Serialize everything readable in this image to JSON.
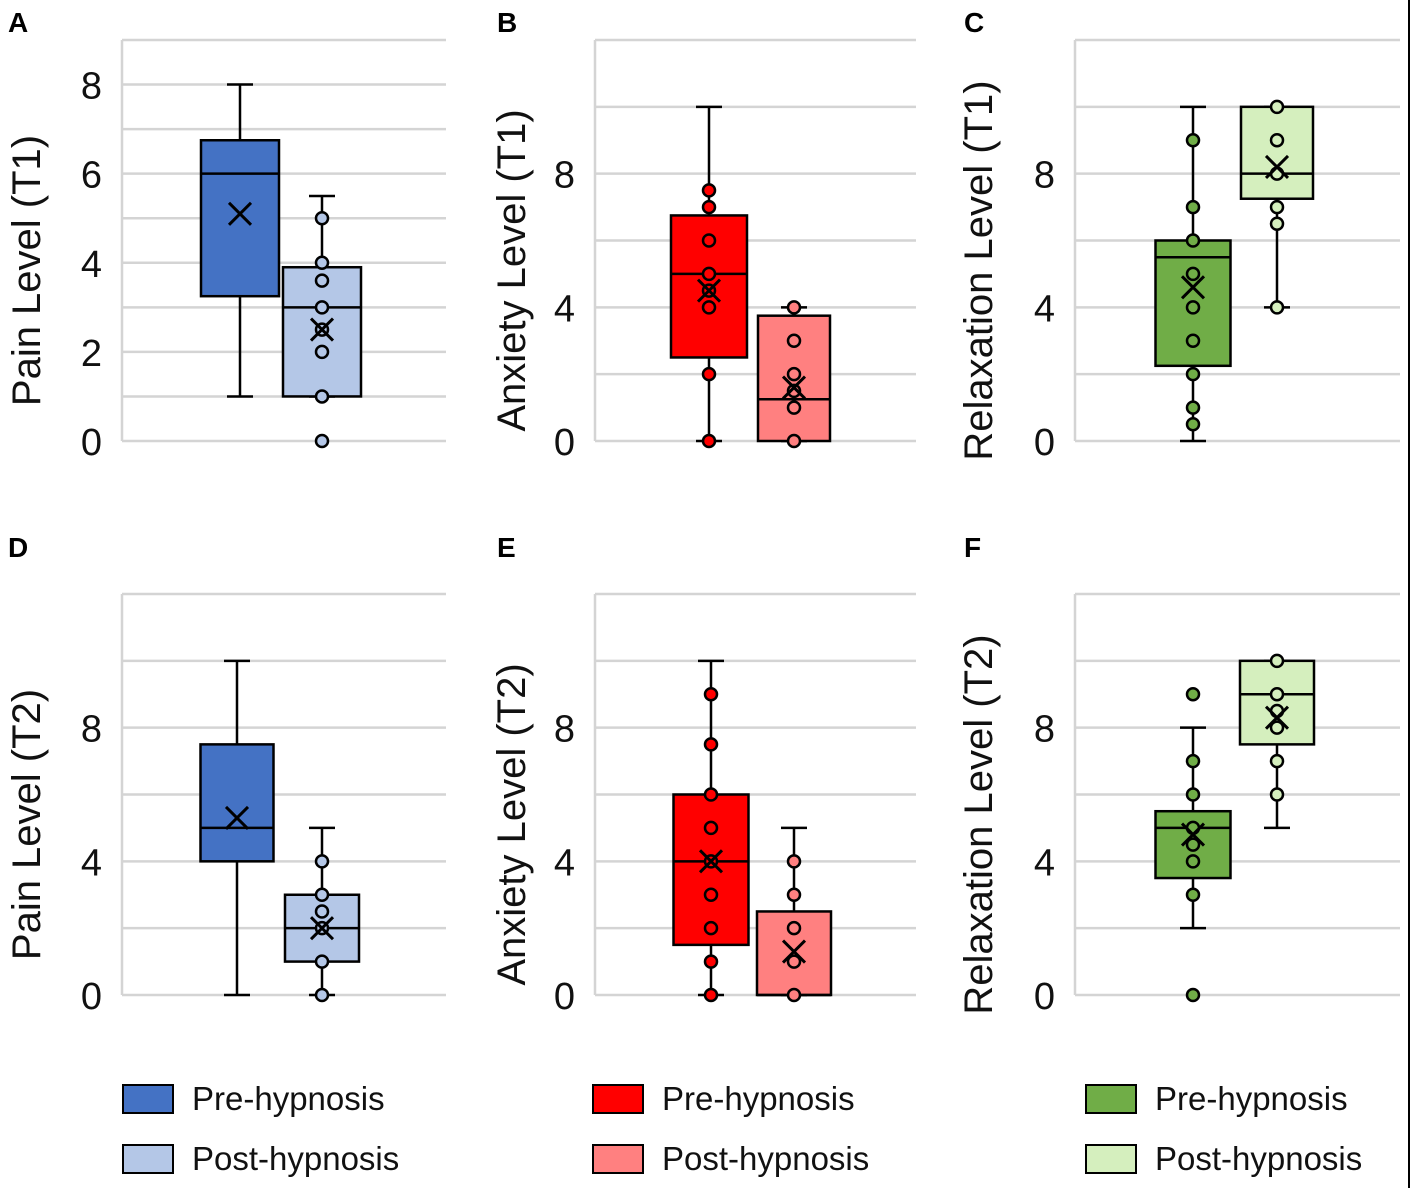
{
  "chart_data": [
    {
      "panel": "A",
      "type": "box",
      "ylabel": "Pain Level (T1)",
      "ylim": [
        0,
        9
      ],
      "ticks": [
        0,
        2,
        4,
        6,
        8
      ],
      "grid": [
        0,
        1,
        2,
        3,
        4,
        5,
        6,
        7,
        8,
        9
      ],
      "series": [
        {
          "name": "Pre-hypnosis",
          "color": "#4472C4",
          "min": 1,
          "q1": 3.25,
          "median": 6,
          "q3": 6.75,
          "max": 8,
          "mean": 5.1,
          "points": []
        },
        {
          "name": "Post-hypnosis",
          "color": "#B4C7E7",
          "min": 1,
          "q1": 1,
          "median": 3,
          "q3": 3.9,
          "max": 5.5,
          "mean": 2.5,
          "points": [
            0,
            1,
            2,
            2.5,
            3,
            3.6,
            4,
            5
          ]
        }
      ]
    },
    {
      "panel": "B",
      "type": "box",
      "ylabel": "Anxiety Level (T1)",
      "ylim": [
        0,
        12
      ],
      "ticks": [
        0,
        4,
        8
      ],
      "grid": [
        0,
        2,
        4,
        6,
        8,
        10,
        12
      ],
      "series": [
        {
          "name": "Pre-hypnosis",
          "color": "#FF0000",
          "min": 0,
          "q1": 2.5,
          "median": 5,
          "q3": 6.75,
          "max": 10,
          "mean": 4.5,
          "points": [
            0,
            2,
            4,
            4.5,
            5,
            6,
            7,
            7.5
          ]
        },
        {
          "name": "Post-hypnosis",
          "color": "#FF8080",
          "min": 0,
          "q1": 0,
          "median": 1.25,
          "q3": 3.75,
          "max": 4,
          "mean": 1.6,
          "points": [
            0,
            1,
            1.5,
            2,
            3,
            4
          ]
        }
      ]
    },
    {
      "panel": "C",
      "type": "box",
      "ylabel": "Relaxation Level (T1)",
      "ylim": [
        0,
        12
      ],
      "ticks": [
        0,
        4,
        8
      ],
      "grid": [
        0,
        2,
        4,
        6,
        8,
        10,
        12
      ],
      "series": [
        {
          "name": "Pre-hypnosis",
          "color": "#70AD47",
          "min": 0,
          "q1": 2.25,
          "median": 5.5,
          "q3": 6,
          "max": 10,
          "mean": 4.6,
          "points": [
            0.5,
            1,
            2,
            3,
            4,
            5,
            6,
            7,
            9
          ]
        },
        {
          "name": "Post-hypnosis",
          "color": "#D5EFBE",
          "min": 4,
          "q1": 7.25,
          "median": 8,
          "q3": 10,
          "max": 10,
          "mean": 8.2,
          "points": [
            4,
            6.5,
            7,
            8,
            9,
            10
          ]
        }
      ]
    },
    {
      "panel": "D",
      "type": "box",
      "ylabel": "Pain Level (T2)",
      "ylim": [
        0,
        12
      ],
      "ticks": [
        0,
        4,
        8
      ],
      "grid": [
        0,
        2,
        4,
        6,
        8,
        10,
        12
      ],
      "series": [
        {
          "name": "Pre-hypnosis",
          "color": "#4472C4",
          "min": 0,
          "q1": 4,
          "median": 5,
          "q3": 7.5,
          "max": 10,
          "mean": 5.3,
          "points": []
        },
        {
          "name": "Post-hypnosis",
          "color": "#B4C7E7",
          "min": 0,
          "q1": 1,
          "median": 2,
          "q3": 3,
          "max": 5,
          "mean": 2,
          "points": [
            0,
            1,
            2,
            2.5,
            3,
            4
          ]
        }
      ]
    },
    {
      "panel": "E",
      "type": "box",
      "ylabel": "Anxiety Level (T2)",
      "ylim": [
        0,
        12
      ],
      "ticks": [
        0,
        4,
        8
      ],
      "grid": [
        0,
        2,
        4,
        6,
        8,
        10,
        12
      ],
      "series": [
        {
          "name": "Pre-hypnosis",
          "color": "#FF0000",
          "min": 0,
          "q1": 1.5,
          "median": 4,
          "q3": 6,
          "max": 10,
          "mean": 4,
          "points": [
            0,
            1,
            2,
            3,
            4,
            5,
            6,
            7.5,
            9
          ]
        },
        {
          "name": "Post-hypnosis",
          "color": "#FF8080",
          "min": 0,
          "q1": 0,
          "median": 0,
          "q3": 2.5,
          "max": 5,
          "mean": 1.3,
          "points": [
            0,
            1,
            2,
            3,
            4
          ]
        }
      ]
    },
    {
      "panel": "F",
      "type": "box",
      "ylabel": "Relaxation Level (T2)",
      "ylim": [
        0,
        12
      ],
      "ticks": [
        0,
        4,
        8
      ],
      "grid": [
        0,
        2,
        4,
        6,
        8,
        10,
        12
      ],
      "series": [
        {
          "name": "Pre-hypnosis",
          "color": "#70AD47",
          "min": 2,
          "q1": 3.5,
          "median": 5,
          "q3": 5.5,
          "max": 8,
          "mean": 4.8,
          "points": [
            0,
            3,
            4,
            4.5,
            5,
            6,
            7,
            9
          ]
        },
        {
          "name": "Post-hypnosis",
          "color": "#D5EFBE",
          "min": 5,
          "q1": 7.5,
          "median": 9,
          "q3": 10,
          "max": 10,
          "mean": 8.3,
          "points": [
            6,
            7,
            8,
            8.5,
            9,
            10
          ]
        }
      ]
    }
  ],
  "legends": [
    {
      "items": [
        {
          "label": "Pre-hypnosis",
          "color": "#4472C4"
        },
        {
          "label": "Post-hypnosis",
          "color": "#B4C7E7"
        }
      ]
    },
    {
      "items": [
        {
          "label": "Pre-hypnosis",
          "color": "#FF0000"
        },
        {
          "label": "Post-hypnosis",
          "color": "#FF8080"
        }
      ]
    },
    {
      "items": [
        {
          "label": "Pre-hypnosis",
          "color": "#70AD47"
        },
        {
          "label": "Post-hypnosis",
          "color": "#D5EFBE"
        }
      ]
    }
  ]
}
